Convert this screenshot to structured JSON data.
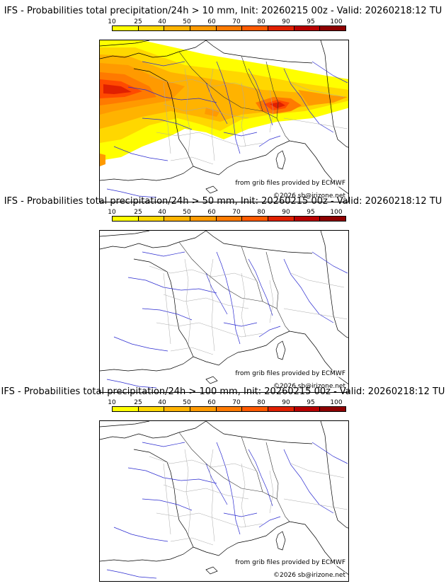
{
  "legend": {
    "ticks": [
      "10",
      "25",
      "40",
      "50",
      "60",
      "70",
      "80",
      "90",
      "95",
      "100"
    ],
    "colors": [
      "#ffff00",
      "#ffd700",
      "#ffb300",
      "#ff9a00",
      "#ff7a00",
      "#ff5a00",
      "#e02000",
      "#b80000",
      "#8e0000",
      "#6a0000"
    ]
  },
  "panels": [
    {
      "title": "IFS - Probabilities total precipitation/24h > 10 mm, Init: 20260215 00z - Valid: 20260218:12 TU",
      "threshold_mm": 10,
      "credit": "from grib files provided by ECMWF",
      "copyright": "©2026 sb@irizone.net"
    },
    {
      "title": "IFS - Probabilities total precipitation/24h > 50 mm, Init: 20260215 00z - Valid: 20260218:12 TU",
      "threshold_mm": 50,
      "credit": "from grib files provided by ECMWF",
      "copyright": "©2026 sb@irizone.net"
    },
    {
      "title": "IFS - Probabilities total precipitation/24h > 100 mm, Init: 20260215 00z - Valid: 20260218:12 TU",
      "threshold_mm": 100,
      "credit": "from grib files provided by ECMWF",
      "copyright": "©2026 sb@irizone.net"
    }
  ]
}
